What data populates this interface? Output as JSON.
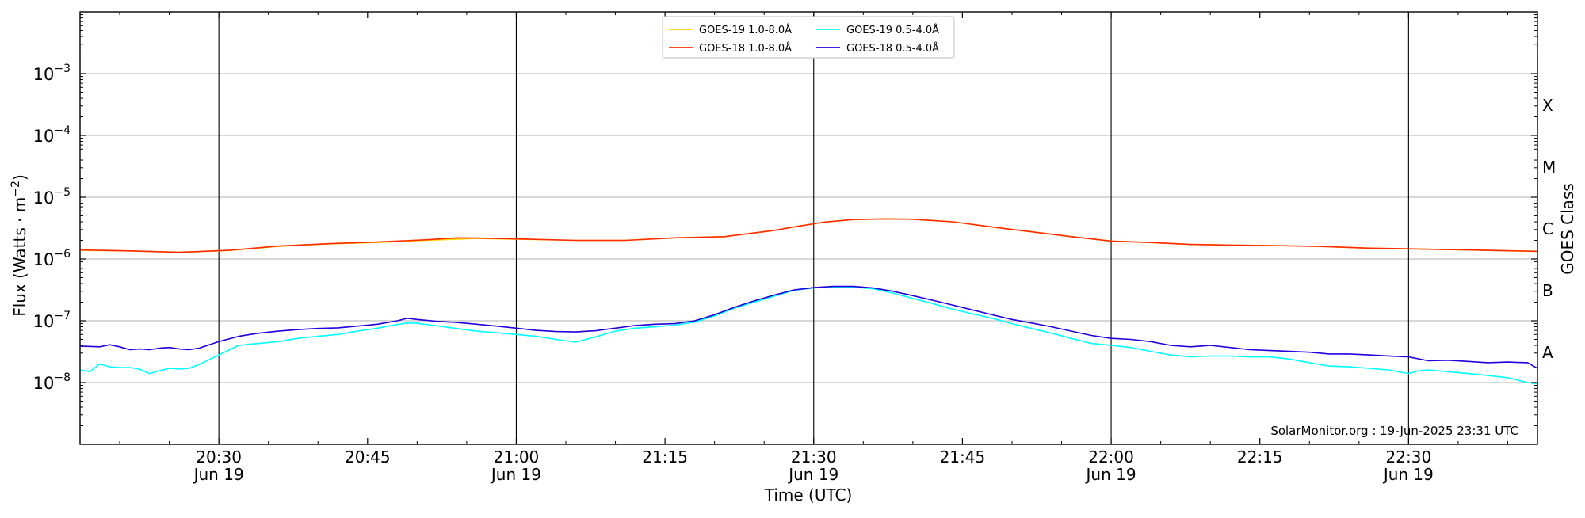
{
  "chart_data": {
    "type": "line",
    "xlabel": "Time (UTC)",
    "ylabel": "Flux (Watts · m",
    "ylabel_sup": "−2",
    "ylabel_close": ")",
    "right_axis_label": "GOES Class",
    "x_range_minutes": [
      0,
      147
    ],
    "y_scale": "log",
    "ylim": [
      1e-09,
      0.01
    ],
    "y_ticks": [
      {
        "exp": -3,
        "base": "10",
        "sup": "−3"
      },
      {
        "exp": -4,
        "base": "10",
        "sup": "−4"
      },
      {
        "exp": -5,
        "base": "10",
        "sup": "−5"
      },
      {
        "exp": -6,
        "base": "10",
        "sup": "−6"
      },
      {
        "exp": -7,
        "base": "10",
        "sup": "−7"
      },
      {
        "exp": -8,
        "base": "10",
        "sup": "−8"
      }
    ],
    "x_ticks": [
      {
        "min": 14,
        "time": "20:30",
        "date": "Jun 19",
        "major": true
      },
      {
        "min": 29,
        "time": "20:45",
        "date": "",
        "major": false
      },
      {
        "min": 44,
        "time": "21:00",
        "date": "Jun 19",
        "major": true
      },
      {
        "min": 59,
        "time": "21:15",
        "date": "",
        "major": false
      },
      {
        "min": 74,
        "time": "21:30",
        "date": "Jun 19",
        "major": true
      },
      {
        "min": 89,
        "time": "21:45",
        "date": "",
        "major": false
      },
      {
        "min": 104,
        "time": "22:00",
        "date": "Jun 19",
        "major": true
      },
      {
        "min": 119,
        "time": "22:15",
        "date": "",
        "major": false
      },
      {
        "min": 134,
        "time": "22:30",
        "date": "Jun 19",
        "major": true
      }
    ],
    "goes_classes": [
      {
        "label": "X",
        "exp": -3.5
      },
      {
        "label": "M",
        "exp": -4.5
      },
      {
        "label": "C",
        "exp": -5.5
      },
      {
        "label": "B",
        "exp": -6.5
      },
      {
        "label": "A",
        "exp": -7.5
      }
    ],
    "grid": "horizontal at decades; vertical lines at daily-labeled ticks",
    "legend_placement": "top-center",
    "attribution": "SolarMonitor.org : 19-Jun-2025 23:31 UTC",
    "series": [
      {
        "name": "GOES-19 1.0-8.0Å",
        "color": "#ffd700",
        "points": [
          [
            0,
            1.38e-06
          ],
          [
            5,
            1.35e-06
          ],
          [
            10,
            1.28e-06
          ],
          [
            15,
            1.37e-06
          ],
          [
            20,
            1.6e-06
          ],
          [
            25,
            1.75e-06
          ],
          [
            30,
            1.85e-06
          ],
          [
            35,
            2e-06
          ],
          [
            40,
            2.15e-06
          ],
          [
            45,
            2.08e-06
          ],
          [
            50,
            2e-06
          ],
          [
            55,
            2e-06
          ],
          [
            60,
            2.2e-06
          ],
          [
            65,
            2.3e-06
          ],
          [
            70,
            2.9e-06
          ],
          [
            72,
            3.3e-06
          ],
          [
            75,
            3.95e-06
          ],
          [
            78,
            4.35e-06
          ],
          [
            81,
            4.45e-06
          ],
          [
            84,
            4.4e-06
          ],
          [
            88,
            4e-06
          ],
          [
            92,
            3.3e-06
          ],
          [
            96,
            2.75e-06
          ],
          [
            100,
            2.3e-06
          ],
          [
            104,
            1.95e-06
          ],
          [
            108,
            1.85e-06
          ],
          [
            112,
            1.72e-06
          ],
          [
            116,
            1.68e-06
          ],
          [
            120,
            1.65e-06
          ],
          [
            125,
            1.6e-06
          ],
          [
            130,
            1.5e-06
          ],
          [
            135,
            1.45e-06
          ],
          [
            140,
            1.4e-06
          ],
          [
            147,
            1.32e-06
          ]
        ]
      },
      {
        "name": "GOES-18 1.0-8.0Å",
        "color": "#ff2a00",
        "points": [
          [
            0,
            1.4e-06
          ],
          [
            5,
            1.35e-06
          ],
          [
            10,
            1.28e-06
          ],
          [
            15,
            1.38e-06
          ],
          [
            20,
            1.62e-06
          ],
          [
            25,
            1.77e-06
          ],
          [
            30,
            1.88e-06
          ],
          [
            35,
            2.05e-06
          ],
          [
            38,
            2.2e-06
          ],
          [
            40,
            2.18e-06
          ],
          [
            45,
            2.1e-06
          ],
          [
            50,
            2e-06
          ],
          [
            55,
            2e-06
          ],
          [
            60,
            2.2e-06
          ],
          [
            65,
            2.3e-06
          ],
          [
            70,
            2.9e-06
          ],
          [
            72,
            3.3e-06
          ],
          [
            75,
            3.95e-06
          ],
          [
            78,
            4.35e-06
          ],
          [
            81,
            4.45e-06
          ],
          [
            84,
            4.4e-06
          ],
          [
            88,
            4e-06
          ],
          [
            92,
            3.3e-06
          ],
          [
            96,
            2.75e-06
          ],
          [
            100,
            2.3e-06
          ],
          [
            104,
            1.95e-06
          ],
          [
            108,
            1.85e-06
          ],
          [
            112,
            1.72e-06
          ],
          [
            116,
            1.68e-06
          ],
          [
            120,
            1.65e-06
          ],
          [
            125,
            1.6e-06
          ],
          [
            130,
            1.5e-06
          ],
          [
            135,
            1.45e-06
          ],
          [
            140,
            1.4e-06
          ],
          [
            147,
            1.33e-06
          ]
        ]
      },
      {
        "name": "GOES-19 0.5-4.0Å",
        "color": "#00ffff",
        "points": [
          [
            0,
            1.6e-08
          ],
          [
            1,
            1.5e-08
          ],
          [
            2,
            2e-08
          ],
          [
            3,
            1.8e-08
          ],
          [
            4,
            1.75e-08
          ],
          [
            5,
            1.75e-08
          ],
          [
            6,
            1.65e-08
          ],
          [
            7,
            1.4e-08
          ],
          [
            8,
            1.55e-08
          ],
          [
            9,
            1.7e-08
          ],
          [
            10,
            1.65e-08
          ],
          [
            11,
            1.7e-08
          ],
          [
            12,
            1.95e-08
          ],
          [
            14,
            2.8e-08
          ],
          [
            16,
            4e-08
          ],
          [
            18,
            4.3e-08
          ],
          [
            20,
            4.6e-08
          ],
          [
            22,
            5.2e-08
          ],
          [
            24,
            5.6e-08
          ],
          [
            26,
            6e-08
          ],
          [
            28,
            6.8e-08
          ],
          [
            30,
            7.6e-08
          ],
          [
            32,
            8.7e-08
          ],
          [
            33,
            9.2e-08
          ],
          [
            34,
            9.1e-08
          ],
          [
            36,
            8.3e-08
          ],
          [
            38,
            7.5e-08
          ],
          [
            40,
            6.8e-08
          ],
          [
            42,
            6.4e-08
          ],
          [
            44,
            6e-08
          ],
          [
            46,
            5.6e-08
          ],
          [
            48,
            5e-08
          ],
          [
            50,
            4.5e-08
          ],
          [
            52,
            5.5e-08
          ],
          [
            54,
            6.8e-08
          ],
          [
            56,
            7.6e-08
          ],
          [
            58,
            8e-08
          ],
          [
            60,
            8.5e-08
          ],
          [
            62,
            9.5e-08
          ],
          [
            64,
            1.2e-07
          ],
          [
            66,
            1.6e-07
          ],
          [
            68,
            2e-07
          ],
          [
            70,
            2.5e-07
          ],
          [
            72,
            3.1e-07
          ],
          [
            74,
            3.4e-07
          ],
          [
            76,
            3.5e-07
          ],
          [
            78,
            3.5e-07
          ],
          [
            80,
            3.3e-07
          ],
          [
            82,
            2.8e-07
          ],
          [
            84,
            2.3e-07
          ],
          [
            86,
            1.9e-07
          ],
          [
            88,
            1.55e-07
          ],
          [
            90,
            1.3e-07
          ],
          [
            92,
            1.1e-07
          ],
          [
            94,
            9e-08
          ],
          [
            96,
            7.5e-08
          ],
          [
            98,
            6.3e-08
          ],
          [
            100,
            5.2e-08
          ],
          [
            102,
            4.3e-08
          ],
          [
            104,
            4e-08
          ],
          [
            106,
            3.7e-08
          ],
          [
            108,
            3.2e-08
          ],
          [
            110,
            2.8e-08
          ],
          [
            112,
            2.6e-08
          ],
          [
            114,
            2.7e-08
          ],
          [
            116,
            2.7e-08
          ],
          [
            118,
            2.6e-08
          ],
          [
            120,
            2.6e-08
          ],
          [
            122,
            2.4e-08
          ],
          [
            124,
            2.1e-08
          ],
          [
            126,
            1.85e-08
          ],
          [
            128,
            1.8e-08
          ],
          [
            130,
            1.7e-08
          ],
          [
            132,
            1.6e-08
          ],
          [
            134,
            1.4e-08
          ],
          [
            135,
            1.55e-08
          ],
          [
            136,
            1.6e-08
          ],
          [
            138,
            1.5e-08
          ],
          [
            140,
            1.4e-08
          ],
          [
            142,
            1.3e-08
          ],
          [
            144,
            1.2e-08
          ],
          [
            146,
            1e-08
          ],
          [
            147,
            9.5e-09
          ]
        ]
      },
      {
        "name": "GOES-18 0.5-4.0Å",
        "color": "#2200dd",
        "points": [
          [
            0,
            3.9e-08
          ],
          [
            2,
            3.8e-08
          ],
          [
            3,
            4.1e-08
          ],
          [
            4,
            3.8e-08
          ],
          [
            5,
            3.4e-08
          ],
          [
            6,
            3.5e-08
          ],
          [
            7,
            3.4e-08
          ],
          [
            8,
            3.6e-08
          ],
          [
            9,
            3.7e-08
          ],
          [
            10,
            3.5e-08
          ],
          [
            11,
            3.4e-08
          ],
          [
            12,
            3.6e-08
          ],
          [
            14,
            4.6e-08
          ],
          [
            16,
            5.6e-08
          ],
          [
            18,
            6.3e-08
          ],
          [
            20,
            6.8e-08
          ],
          [
            22,
            7.2e-08
          ],
          [
            24,
            7.5e-08
          ],
          [
            26,
            7.7e-08
          ],
          [
            28,
            8.2e-08
          ],
          [
            30,
            8.8e-08
          ],
          [
            32,
            1e-07
          ],
          [
            33,
            1.1e-07
          ],
          [
            34,
            1.05e-07
          ],
          [
            36,
            9.8e-08
          ],
          [
            38,
            9.4e-08
          ],
          [
            40,
            8.8e-08
          ],
          [
            42,
            8.2e-08
          ],
          [
            44,
            7.6e-08
          ],
          [
            46,
            7e-08
          ],
          [
            48,
            6.7e-08
          ],
          [
            50,
            6.6e-08
          ],
          [
            52,
            6.9e-08
          ],
          [
            54,
            7.6e-08
          ],
          [
            56,
            8.4e-08
          ],
          [
            58,
            8.8e-08
          ],
          [
            60,
            9e-08
          ],
          [
            62,
            1e-07
          ],
          [
            64,
            1.25e-07
          ],
          [
            66,
            1.65e-07
          ],
          [
            68,
            2.1e-07
          ],
          [
            70,
            2.6e-07
          ],
          [
            72,
            3.15e-07
          ],
          [
            74,
            3.45e-07
          ],
          [
            76,
            3.6e-07
          ],
          [
            78,
            3.6e-07
          ],
          [
            80,
            3.4e-07
          ],
          [
            82,
            3e-07
          ],
          [
            84,
            2.55e-07
          ],
          [
            86,
            2.15e-07
          ],
          [
            88,
            1.8e-07
          ],
          [
            90,
            1.5e-07
          ],
          [
            92,
            1.25e-07
          ],
          [
            94,
            1.05e-07
          ],
          [
            96,
            9.2e-08
          ],
          [
            98,
            8e-08
          ],
          [
            100,
            6.8e-08
          ],
          [
            102,
            5.8e-08
          ],
          [
            104,
            5.2e-08
          ],
          [
            106,
            5e-08
          ],
          [
            108,
            4.6e-08
          ],
          [
            110,
            4e-08
          ],
          [
            112,
            3.8e-08
          ],
          [
            114,
            4e-08
          ],
          [
            116,
            3.7e-08
          ],
          [
            118,
            3.4e-08
          ],
          [
            120,
            3.3e-08
          ],
          [
            122,
            3.2e-08
          ],
          [
            124,
            3.1e-08
          ],
          [
            126,
            2.9e-08
          ],
          [
            128,
            2.9e-08
          ],
          [
            130,
            2.8e-08
          ],
          [
            132,
            2.7e-08
          ],
          [
            134,
            2.6e-08
          ],
          [
            136,
            2.25e-08
          ],
          [
            138,
            2.3e-08
          ],
          [
            140,
            2.2e-08
          ],
          [
            142,
            2.1e-08
          ],
          [
            144,
            2.15e-08
          ],
          [
            146,
            2.1e-08
          ],
          [
            147,
            1.7e-08
          ]
        ]
      }
    ]
  }
}
